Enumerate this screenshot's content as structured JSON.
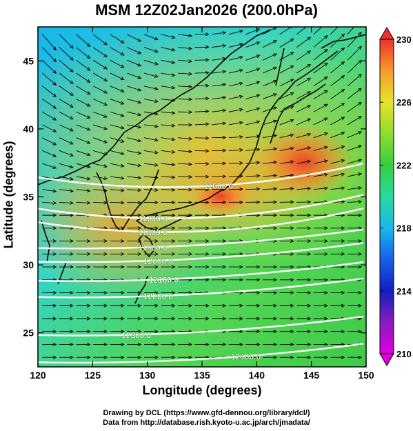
{
  "title": "MSM 12Z02Jan2026 (200.0hPa)",
  "x_axis": {
    "label": "Longitude (degrees)",
    "range": [
      120,
      150
    ],
    "ticks": [
      "120",
      "125",
      "130",
      "135",
      "140",
      "145",
      "150"
    ]
  },
  "y_axis": {
    "label": "Latitude  (degrees)",
    "range": [
      22.5,
      47.5
    ],
    "ticks": [
      "25",
      "30",
      "35",
      "40",
      "45"
    ]
  },
  "colorbar": {
    "range": [
      210,
      230
    ],
    "ticks": [
      "210",
      "214",
      "218",
      "222",
      "226",
      "230"
    ]
  },
  "contours": [
    {
      "label": "11600.0",
      "lat": 36.3
    },
    {
      "label": "11700.0",
      "lat": 34.0
    },
    {
      "label": "11800.0",
      "lat": 33.0
    },
    {
      "label": "11900.0",
      "lat": 32.0
    },
    {
      "label": "12000.0",
      "lat": 31.0
    },
    {
      "label": "12100.0",
      "lat": 29.6
    },
    {
      "label": "12200.0",
      "lat": 28.4
    },
    {
      "label": "12300.0",
      "lat": 25.6
    },
    {
      "label": "12400.0",
      "lat": 23.6
    }
  ],
  "credits": {
    "line1": "Drawing by DCL (https://www.gfd-dennou.org/library/dcl/)",
    "line2": "Data from http://database.rish.kyoto-u.ac.jp/arch/jmadata/"
  },
  "colors": {
    "field_low": "#19c4e8",
    "field_mid": "#4fd24a",
    "field_high": "#f24a22",
    "contour": "#ffffff",
    "vector": "#000000",
    "coastline": "#000000"
  }
}
